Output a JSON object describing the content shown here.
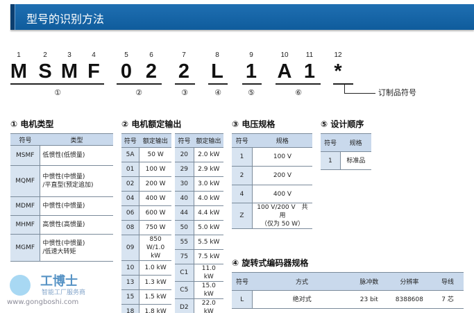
{
  "header": {
    "title": "型号的识别方法"
  },
  "model": {
    "positions": [
      "1",
      "2",
      "3",
      "4",
      "5",
      "6",
      "7",
      "8",
      "9",
      "10",
      "11",
      "12"
    ],
    "chars": [
      "M",
      "S",
      "M",
      "F",
      "0",
      "2",
      "2",
      "L",
      "1",
      "A",
      "1",
      "*"
    ],
    "groups": [
      "①",
      "②",
      "③",
      "④",
      "⑤",
      "⑥"
    ],
    "custom_label": "订制品符号"
  },
  "t1": {
    "title": "① 电机类型",
    "headers": [
      "符号",
      "类型"
    ],
    "rows": [
      [
        "MSMF",
        "低惯性(低惯量)"
      ],
      [
        "MQMF",
        "中惯性(中惯量)\n/平直型(预定追加)"
      ],
      [
        "MDMF",
        "中惯性(中惯量)"
      ],
      [
        "MHMF",
        "高惯性(高惯量)"
      ],
      [
        "MGMF",
        "中惯性(中惯量)\n/低速大转矩"
      ]
    ]
  },
  "t2": {
    "title": "② 电机额定输出",
    "headers": [
      "符号",
      "额定输出"
    ],
    "left": [
      [
        "5A",
        "50 W"
      ],
      [
        "01",
        "100 W"
      ],
      [
        "02",
        "200 W"
      ],
      [
        "04",
        "400 W"
      ],
      [
        "06",
        "600 W"
      ],
      [
        "08",
        "750 W"
      ],
      [
        "09",
        "850 W/1.0 kW"
      ],
      [
        "10",
        "1.0 kW"
      ],
      [
        "13",
        "1.3 kW"
      ],
      [
        "15",
        "1.5 kW"
      ],
      [
        "18",
        "1.8 kW"
      ]
    ],
    "right": [
      [
        "20",
        "2.0 kW"
      ],
      [
        "29",
        "2.9 kW"
      ],
      [
        "30",
        "3.0 kW"
      ],
      [
        "40",
        "4.0 kW"
      ],
      [
        "44",
        "4.4 kW"
      ],
      [
        "50",
        "5.0 kW"
      ],
      [
        "55",
        "5.5 kW"
      ],
      [
        "75",
        "7.5 kW"
      ],
      [
        "C1",
        "11.0 kW"
      ],
      [
        "C5",
        "15.0 kW"
      ],
      [
        "D2",
        "22.0 kW"
      ]
    ]
  },
  "t3": {
    "title": "③ 电压规格",
    "headers": [
      "符号",
      "规格"
    ],
    "rows": [
      [
        "1",
        "100 V"
      ],
      [
        "2",
        "200 V"
      ],
      [
        "4",
        "400 V"
      ],
      [
        "Z",
        "100 V/200 V　共用\n（仅为 50 W）"
      ]
    ]
  },
  "t5": {
    "title": "⑤ 设计顺序",
    "headers": [
      "符号",
      "规格"
    ],
    "rows": [
      [
        "1",
        "标准品"
      ]
    ]
  },
  "t4": {
    "title": "④ 旋转式编码器规格",
    "headers": [
      "符号",
      "方式",
      "脉冲数",
      "分辨率",
      "导线"
    ],
    "rows": [
      [
        "L",
        "绝对式",
        "23 bit",
        "8388608",
        "7 芯"
      ]
    ]
  },
  "watermark": {
    "brand": "工博士",
    "slogan": "智能工厂服务商",
    "url": "www.gongboshi.com"
  },
  "colors": {
    "header_bar": "#1565a8",
    "table_header": "#c9d9ec",
    "key_column": "#d8e4f1"
  }
}
